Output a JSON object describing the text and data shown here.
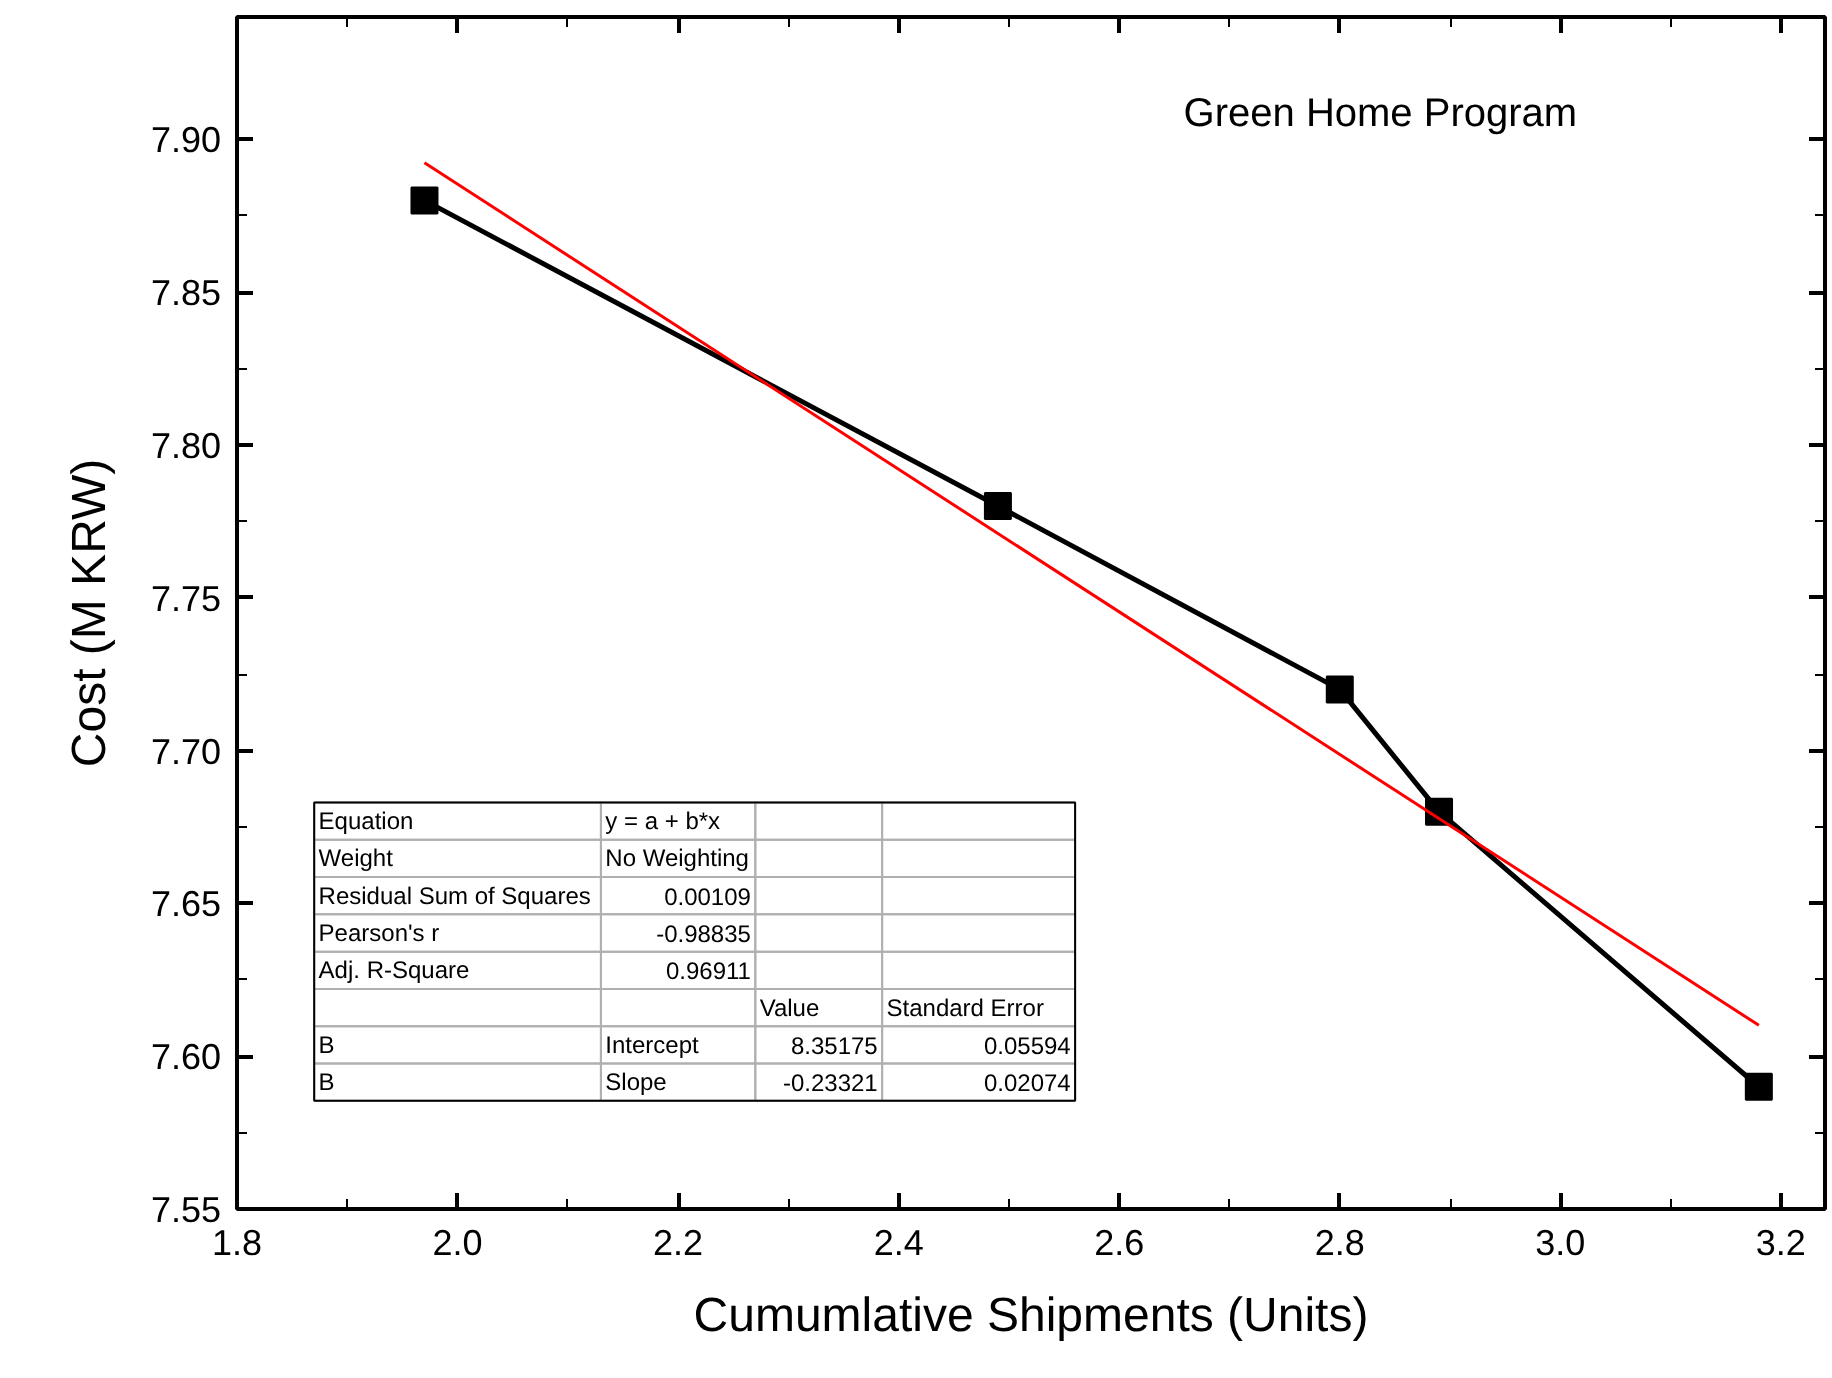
{
  "chart_data": {
    "type": "line",
    "xlabel": "Cumumlative Shipments (Units)",
    "ylabel": "Cost (M KRW)",
    "xlim": [
      1.8,
      3.24
    ],
    "xticks": [
      1.8,
      {
        "value": 2.0,
        "label": "2.0"
      },
      2.2,
      2.4,
      2.6,
      2.8,
      {
        "value": 3.0,
        "label": "3.0"
      },
      3.2
    ],
    "ylim": [
      7.55,
      7.94
    ],
    "yticks": [
      7.55,
      {
        "value": 7.6,
        "label": "7.60"
      },
      7.65,
      {
        "value": 7.7,
        "label": "7.70"
      },
      7.75,
      {
        "value": 7.8,
        "label": "7.80"
      },
      7.85,
      {
        "value": 7.9,
        "label": "7.90"
      }
    ],
    "grid": false,
    "series": [
      {
        "color": "#000000",
        "marker": "square",
        "x": [
          1.97,
          2.49,
          2.8,
          2.89,
          3.18
        ],
        "values": [
          7.88,
          7.78,
          7.72,
          7.68,
          7.59
        ]
      },
      {
        "color": "#ff0000",
        "marker": "none",
        "x": [
          1.97,
          3.18
        ],
        "values": [
          7.8923,
          7.6101
        ]
      }
    ],
    "annotations": [
      "Green Home Program",
      "Equation\ty = a + b*x\t\t",
      "Weight\tNo Weighting\t\t",
      "Residual Sum of Squares\t0.00109\t\t",
      "Pearson's r\t-0.98835\t\t",
      "Adj. R-Square\t0.96911\t\t",
      "\t\tValue\tStandard Error",
      "B\tIntercept\t8.35175\t0.05594",
      "B\tSlope\t-0.23321\t0.02074"
    ]
  }
}
